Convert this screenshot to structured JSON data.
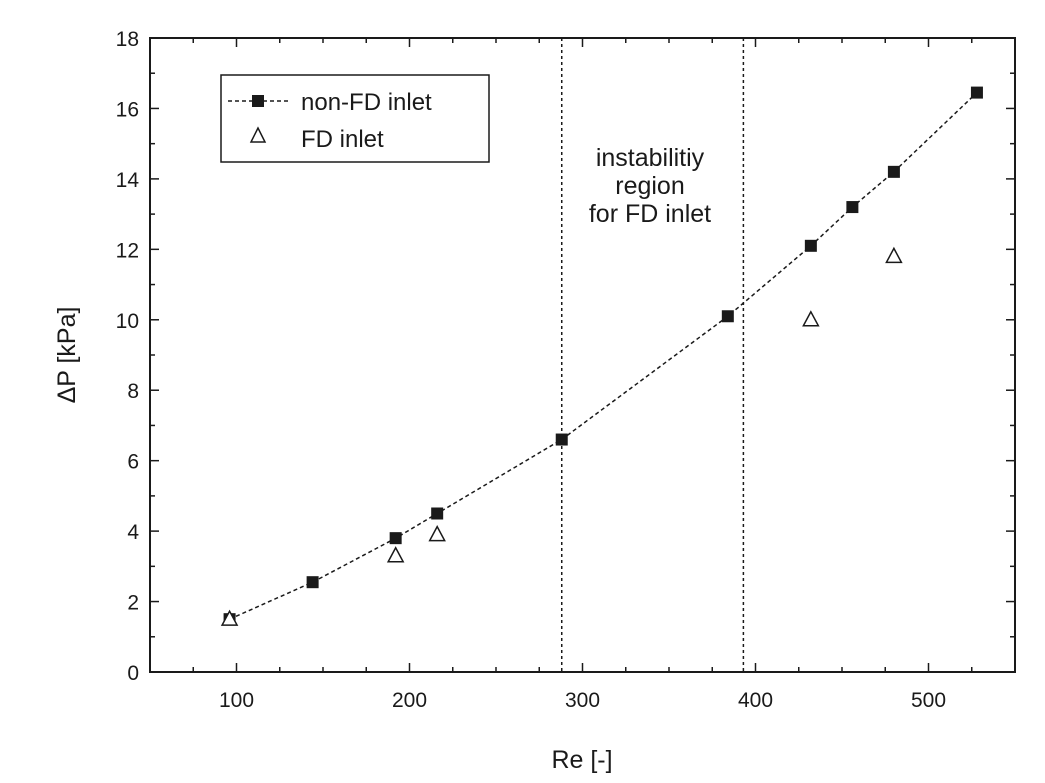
{
  "chart_data": {
    "type": "scatter",
    "title": "",
    "xlabel": "Re [-]",
    "ylabel": "ΔP [kPa]",
    "xlim": [
      50,
      550
    ],
    "ylim": [
      0,
      18
    ],
    "x_ticks": [
      100,
      200,
      300,
      400,
      500
    ],
    "y_ticks": [
      0,
      2,
      4,
      6,
      8,
      10,
      12,
      14,
      16,
      18
    ],
    "grid": false,
    "legend_position": "top-left",
    "series": [
      {
        "name": "non-FD inlet",
        "marker": "filled-square",
        "line": "dashed",
        "points": [
          {
            "x": 96,
            "y": 1.5
          },
          {
            "x": 144,
            "y": 2.55
          },
          {
            "x": 192,
            "y": 3.8
          },
          {
            "x": 216,
            "y": 4.5
          },
          {
            "x": 288,
            "y": 6.6
          },
          {
            "x": 384,
            "y": 10.1
          },
          {
            "x": 432,
            "y": 12.1
          },
          {
            "x": 456,
            "y": 13.2
          },
          {
            "x": 480,
            "y": 14.2
          },
          {
            "x": 528,
            "y": 16.45
          }
        ]
      },
      {
        "name": "FD inlet",
        "marker": "open-triangle",
        "line": "none",
        "points": [
          {
            "x": 96,
            "y": 1.5
          },
          {
            "x": 192,
            "y": 3.3
          },
          {
            "x": 216,
            "y": 3.9
          },
          {
            "x": 432,
            "y": 10.0
          },
          {
            "x": 480,
            "y": 11.8
          }
        ]
      }
    ],
    "vertical_lines": [
      288,
      393
    ],
    "annotation": {
      "lines": [
        "instabilitiy",
        "region",
        "for FD inlet"
      ]
    },
    "colors": {
      "ink": "#1a1a1a",
      "background": "#ffffff"
    }
  }
}
